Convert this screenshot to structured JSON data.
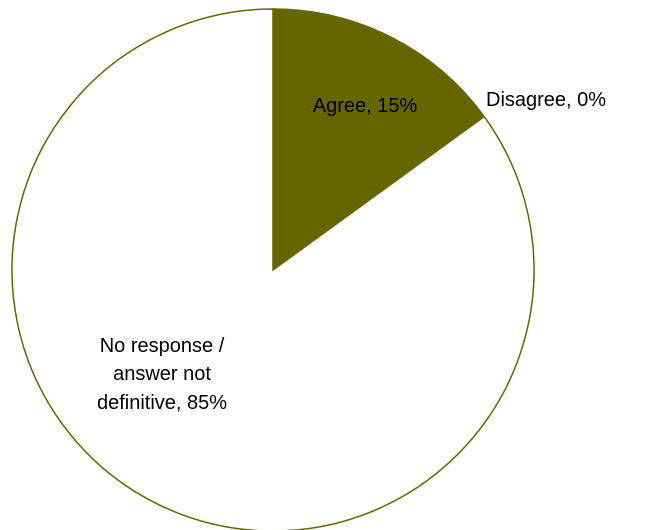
{
  "chart_data": {
    "type": "pie",
    "title": "",
    "slices": [
      {
        "label": "Agree",
        "value": 15,
        "display": "Agree, 15%",
        "color": "#666600"
      },
      {
        "label": "Disagree",
        "value": 0,
        "display": "Disagree, 0%",
        "color": "#666600"
      },
      {
        "label": "No response / answer not definitive",
        "value": 85,
        "display_lines": [
          "No response /",
          "answer not",
          "definitive, 85%"
        ],
        "color": "#ffffff"
      }
    ],
    "start_angle_deg": 0,
    "direction": "clockwise",
    "outline_color": "#666600",
    "legend": "none"
  }
}
